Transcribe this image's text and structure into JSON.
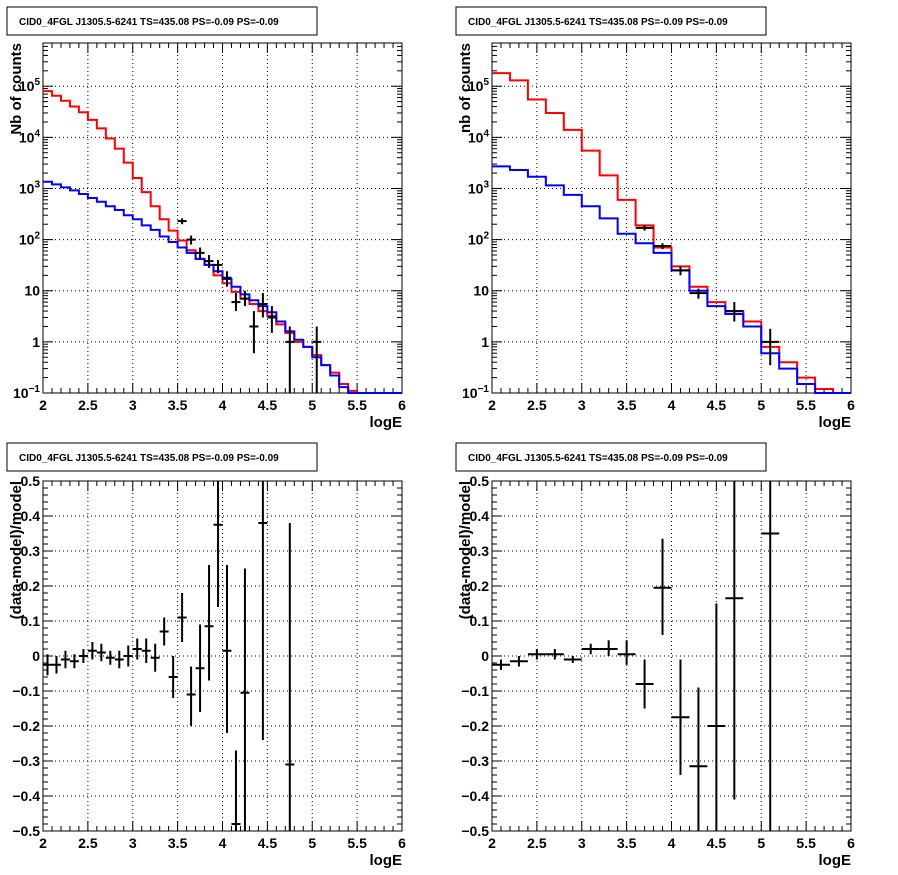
{
  "chart_data": [
    {
      "type": "line",
      "title": "CID0_4FGL J1305.5-6241 TS=435.08 PS=-0.09 PS=-0.09",
      "xlabel": "logE",
      "ylabel": "Nb of counts",
      "xlim": [
        2,
        6
      ],
      "ylim": [
        0.1,
        700000
      ],
      "yscale": "log",
      "grid": true,
      "x_ticks": [
        "2",
        "2.5",
        "3",
        "3.5",
        "4",
        "4.5",
        "5",
        "5.5",
        "6"
      ],
      "y_ticks": [
        {
          "value": 0.1,
          "label": "10",
          "sup": "−1"
        },
        {
          "value": 1,
          "label": "1",
          "sup": ""
        },
        {
          "value": 10,
          "label": "10",
          "sup": ""
        },
        {
          "value": 100,
          "label": "10",
          "sup": "2"
        },
        {
          "value": 1000,
          "label": "10",
          "sup": "3"
        },
        {
          "value": 10000,
          "label": "10",
          "sup": "4"
        },
        {
          "value": 100000,
          "label": "10",
          "sup": "5"
        }
      ],
      "bin_width": 0.1,
      "series": [
        {
          "color": "#ff0000",
          "kind": "step",
          "x": [
            2.0,
            2.1,
            2.2,
            2.3,
            2.4,
            2.5,
            2.6,
            2.7,
            2.8,
            2.9,
            3.0,
            3.1,
            3.2,
            3.3,
            3.4,
            3.5,
            3.6,
            3.7,
            3.8,
            3.9,
            4.0,
            4.1,
            4.2,
            4.3,
            4.4,
            4.5,
            4.6,
            4.7,
            4.8,
            4.9,
            5.0,
            5.1,
            5.2,
            5.3,
            5.4,
            5.5,
            5.6,
            5.7,
            5.8,
            5.9
          ],
          "values": [
            80000,
            65000,
            52000,
            40000,
            31000,
            22000,
            15000,
            9500,
            6000,
            3200,
            1600,
            850,
            450,
            250,
            150,
            96,
            62,
            42,
            32,
            20,
            14,
            9.5,
            7,
            5.5,
            4,
            3.2,
            2.2,
            1.5,
            1,
            0.8,
            0.55,
            0.35,
            0.25,
            0.15,
            0.11,
            0.1,
            0.1,
            0.1,
            0.1,
            0.1
          ]
        },
        {
          "color": "#0000ff",
          "kind": "step",
          "x": [
            2.0,
            2.1,
            2.2,
            2.3,
            2.4,
            2.5,
            2.6,
            2.7,
            2.8,
            2.9,
            3.0,
            3.1,
            3.2,
            3.3,
            3.4,
            3.5,
            3.6,
            3.7,
            3.8,
            3.9,
            4.0,
            4.1,
            4.2,
            4.3,
            4.4,
            4.5,
            4.6,
            4.7,
            4.8,
            4.9,
            5.0,
            5.1,
            5.2,
            5.3,
            5.4,
            5.5,
            5.6,
            5.7,
            5.8,
            5.9
          ],
          "values": [
            1350,
            1200,
            1050,
            920,
            780,
            650,
            550,
            450,
            380,
            300,
            250,
            190,
            155,
            115,
            90,
            70,
            55,
            42,
            32,
            24,
            17,
            12,
            8.5,
            6.5,
            5,
            3.8,
            2.5,
            1.6,
            1.1,
            0.8,
            0.5,
            0.35,
            0.22,
            0.13,
            0.1,
            0.1,
            0.1,
            0.1,
            0.1,
            0.1
          ]
        },
        {
          "color": "#000000",
          "kind": "errorbar",
          "x": [
            3.55,
            3.65,
            3.75,
            3.85,
            3.95,
            4.05,
            4.15,
            4.25,
            4.35,
            4.45,
            4.55,
            4.75,
            5.05
          ],
          "values": [
            230,
            100,
            55,
            38,
            32,
            18,
            6,
            7,
            2,
            5.5,
            3,
            1,
            1
          ],
          "lo": [
            200,
            80,
            40,
            28,
            22,
            12,
            4,
            5,
            0.6,
            3,
            1.5,
            0.1,
            0.1
          ],
          "hi": [
            260,
            120,
            70,
            50,
            40,
            24,
            9,
            10,
            4,
            9,
            5,
            2,
            2
          ]
        }
      ]
    },
    {
      "type": "line",
      "title": "CID0_4FGL J1305.5-6241 TS=435.08 PS=-0.09 PS=-0.09",
      "xlabel": "logE",
      "ylabel": "nb of counts",
      "xlim": [
        2,
        6
      ],
      "ylim": [
        0.1,
        700000
      ],
      "yscale": "log",
      "grid": true,
      "x_ticks": [
        "2",
        "2.5",
        "3",
        "3.5",
        "4",
        "4.5",
        "5",
        "5.5",
        "6"
      ],
      "y_ticks": [
        {
          "value": 0.1,
          "label": "10",
          "sup": "−1"
        },
        {
          "value": 1,
          "label": "1",
          "sup": ""
        },
        {
          "value": 10,
          "label": "10",
          "sup": ""
        },
        {
          "value": 100,
          "label": "10",
          "sup": "2"
        },
        {
          "value": 1000,
          "label": "10",
          "sup": "3"
        },
        {
          "value": 10000,
          "label": "10",
          "sup": "4"
        },
        {
          "value": 100000,
          "label": "10",
          "sup": "5"
        }
      ],
      "bin_width": 0.2,
      "series": [
        {
          "color": "#ff0000",
          "kind": "step",
          "x": [
            2.0,
            2.2,
            2.4,
            2.6,
            2.8,
            3.0,
            3.2,
            3.4,
            3.6,
            3.8,
            4.0,
            4.2,
            4.4,
            4.6,
            4.8,
            5.0,
            5.2,
            5.4,
            5.6,
            5.8
          ],
          "values": [
            180000,
            130000,
            55000,
            30000,
            14000,
            5500,
            1800,
            600,
            190,
            70,
            30,
            12,
            6,
            4,
            2.5,
            0.8,
            0.4,
            0.2,
            0.12,
            0.1
          ]
        },
        {
          "color": "#0000ff",
          "kind": "step",
          "x": [
            2.0,
            2.2,
            2.4,
            2.6,
            2.8,
            3.0,
            3.2,
            3.4,
            3.6,
            3.8,
            4.0,
            4.2,
            4.4,
            4.6,
            4.8,
            5.0,
            5.2,
            5.4,
            5.6,
            5.8
          ],
          "values": [
            2700,
            2300,
            1700,
            1150,
            750,
            450,
            260,
            130,
            85,
            55,
            25,
            10,
            5,
            3.5,
            2,
            0.6,
            0.3,
            0.15,
            0.1,
            0.1
          ]
        },
        {
          "color": "#000000",
          "kind": "errorbar",
          "x": [
            3.7,
            3.9,
            4.1,
            4.3,
            4.7,
            5.1
          ],
          "values": [
            170,
            75,
            25,
            9,
            4,
            1
          ],
          "lo": [
            150,
            65,
            20,
            7,
            2.5,
            0.35
          ],
          "hi": [
            190,
            85,
            30,
            11,
            6,
            1.8
          ]
        }
      ]
    },
    {
      "type": "scatter",
      "title": "CID0_4FGL J1305.5-6241 TS=435.08 PS=-0.09 PS=-0.09",
      "xlabel": "logE",
      "ylabel": "(data-model)/model",
      "xlim": [
        2,
        6
      ],
      "ylim": [
        -0.5,
        0.5
      ],
      "grid": true,
      "x_ticks": [
        "2",
        "2.5",
        "3",
        "3.5",
        "4",
        "4.5",
        "5",
        "5.5",
        "6"
      ],
      "y_ticks": [
        "−0.5",
        "−0.4",
        "−0.3",
        "−0.2",
        "−0.1",
        "0",
        "0.1",
        "0.2",
        "0.3",
        "0.4",
        "0.5"
      ],
      "bin_width": 0.1,
      "series": [
        {
          "color": "#000000",
          "kind": "errorbar",
          "x": [
            2.05,
            2.15,
            2.25,
            2.35,
            2.45,
            2.55,
            2.65,
            2.75,
            2.85,
            2.95,
            3.05,
            3.15,
            3.25,
            3.35,
            3.45,
            3.55,
            3.65,
            3.75,
            3.85,
            3.95,
            4.05,
            4.15,
            4.25,
            4.45,
            4.75
          ],
          "values": [
            -0.025,
            -0.025,
            -0.01,
            -0.015,
            0,
            0.015,
            0.01,
            -0.005,
            -0.01,
            0,
            0.02,
            0.015,
            -0.005,
            0.07,
            -0.06,
            0.11,
            -0.11,
            -0.035,
            0.085,
            0.375,
            0.015,
            -0.48,
            -0.105,
            0.38,
            -0.31
          ],
          "lo": [
            -0.055,
            -0.05,
            -0.035,
            -0.035,
            -0.02,
            -0.01,
            -0.015,
            -0.025,
            -0.035,
            -0.03,
            -0.01,
            -0.02,
            -0.045,
            0.03,
            -0.12,
            0.04,
            -0.2,
            -0.16,
            -0.07,
            0.14,
            -0.22,
            -0.5,
            -0.5,
            -0.24,
            -0.5
          ],
          "hi": [
            0.005,
            0,
            0.015,
            0.005,
            0.02,
            0.04,
            0.035,
            0.015,
            0.015,
            0.03,
            0.05,
            0.05,
            0.035,
            0.11,
            0,
            0.18,
            -0.03,
            0.09,
            0.26,
            0.5,
            0.26,
            -0.27,
            0.25,
            0.5,
            0.38
          ]
        }
      ]
    },
    {
      "type": "scatter",
      "title": "CID0_4FGL J1305.5-6241 TS=435.08 PS=-0.09 PS=-0.09",
      "xlabel": "logE",
      "ylabel": "(data-model)/model",
      "xlim": [
        2,
        6
      ],
      "ylim": [
        -0.5,
        0.5
      ],
      "grid": true,
      "x_ticks": [
        "2",
        "2.5",
        "3",
        "3.5",
        "4",
        "4.5",
        "5",
        "5.5",
        "6"
      ],
      "y_ticks": [
        "−0.5",
        "−0.4",
        "−0.3",
        "−0.2",
        "−0.1",
        "0",
        "0.1",
        "0.2",
        "0.3",
        "0.4",
        "0.5"
      ],
      "bin_width": 0.2,
      "series": [
        {
          "color": "#000000",
          "kind": "errorbar",
          "x": [
            2.1,
            2.3,
            2.5,
            2.7,
            2.9,
            3.1,
            3.3,
            3.5,
            3.7,
            3.9,
            4.1,
            4.3,
            4.5,
            4.7,
            5.1
          ],
          "values": [
            -0.025,
            -0.015,
            0.005,
            0.005,
            -0.01,
            0.02,
            0.02,
            0.005,
            -0.08,
            0.195,
            -0.175,
            -0.315,
            -0.2,
            0.165,
            0.35
          ],
          "lo": [
            -0.04,
            -0.03,
            -0.01,
            -0.01,
            -0.02,
            0.005,
            0.0,
            -0.025,
            -0.15,
            0.06,
            -0.34,
            -0.5,
            -0.5,
            -0.41,
            -0.5
          ],
          "hi": [
            -0.01,
            0.0,
            0.02,
            0.02,
            0.0,
            0.035,
            0.045,
            0.045,
            -0.01,
            0.335,
            -0.01,
            -0.09,
            0.15,
            0.5,
            0.5
          ]
        }
      ]
    }
  ]
}
